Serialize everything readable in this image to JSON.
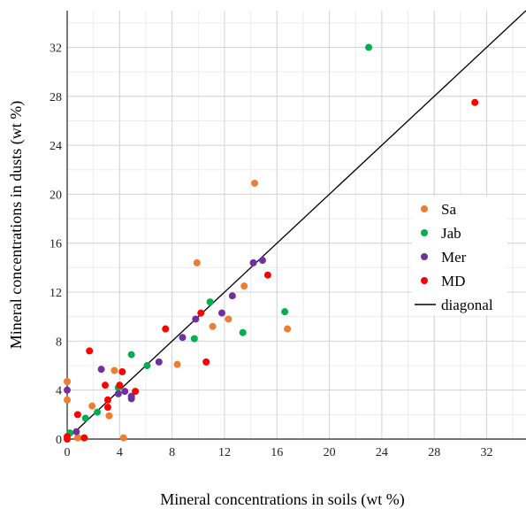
{
  "chart_data": {
    "type": "scatter",
    "title": "",
    "xlabel": "Mineral concentrations  in soils (wt %)",
    "ylabel": "Mineral concentrations  in dusts (wt %)",
    "xlim": [
      0,
      35
    ],
    "ylim": [
      0,
      35
    ],
    "xticks": [
      0,
      4,
      8,
      12,
      16,
      20,
      24,
      28,
      32
    ],
    "yticks": [
      0,
      4,
      8,
      12,
      16,
      20,
      24,
      28,
      32
    ],
    "xtick_labels": [
      "0",
      "4",
      "8",
      "12",
      "16",
      "20",
      "24",
      "28",
      "32"
    ],
    "ytick_labels": [
      "0",
      "4",
      "8",
      "12",
      "16",
      "20",
      "24",
      "28",
      "32"
    ],
    "grid": true,
    "minor_grid_step": 2,
    "legend_position": "right",
    "series": [
      {
        "name": "Sa",
        "color": "#ed7d31",
        "points": [
          [
            0.0,
            4.7
          ],
          [
            0.0,
            3.2
          ],
          [
            1.9,
            2.7
          ],
          [
            3.2,
            1.9
          ],
          [
            3.6,
            5.6
          ],
          [
            4.3,
            0.1
          ],
          [
            0.8,
            0.1
          ],
          [
            8.4,
            6.1
          ],
          [
            9.9,
            14.4
          ],
          [
            11.1,
            9.2
          ],
          [
            12.3,
            9.8
          ],
          [
            13.5,
            12.5
          ],
          [
            14.3,
            20.9
          ],
          [
            16.8,
            9.0
          ]
        ]
      },
      {
        "name": "Jab",
        "color": "#00b050",
        "points": [
          [
            0.2,
            0.5
          ],
          [
            1.4,
            1.7
          ],
          [
            2.3,
            2.2
          ],
          [
            3.9,
            4.2
          ],
          [
            4.9,
            6.9
          ],
          [
            6.1,
            6.0
          ],
          [
            9.7,
            8.2
          ],
          [
            10.9,
            11.2
          ],
          [
            13.4,
            8.7
          ],
          [
            16.6,
            10.4
          ],
          [
            23.0,
            32.0
          ]
        ]
      },
      {
        "name": "Mer",
        "color": "#7030a0",
        "points": [
          [
            0.0,
            4.0
          ],
          [
            0.7,
            0.6
          ],
          [
            2.6,
            5.7
          ],
          [
            3.9,
            3.7
          ],
          [
            4.4,
            3.9
          ],
          [
            4.9,
            3.3
          ],
          [
            4.9,
            3.5
          ],
          [
            7.0,
            6.3
          ],
          [
            8.8,
            8.3
          ],
          [
            9.8,
            9.8
          ],
          [
            11.8,
            10.3
          ],
          [
            12.6,
            11.7
          ],
          [
            14.2,
            14.4
          ],
          [
            14.9,
            14.6
          ]
        ]
      },
      {
        "name": "MD",
        "color": "#ff0000",
        "points": [
          [
            0.0,
            0.2
          ],
          [
            0.0,
            0.0
          ],
          [
            0.8,
            2.0
          ],
          [
            1.3,
            0.1
          ],
          [
            1.7,
            7.2
          ],
          [
            2.9,
            4.4
          ],
          [
            3.1,
            3.2
          ],
          [
            3.1,
            2.6
          ],
          [
            4.0,
            4.4
          ],
          [
            4.2,
            5.5
          ],
          [
            5.2,
            3.9
          ],
          [
            7.5,
            9.0
          ],
          [
            10.2,
            10.3
          ],
          [
            10.6,
            6.3
          ],
          [
            15.3,
            13.4
          ],
          [
            31.1,
            27.5
          ]
        ]
      }
    ],
    "diagonal": {
      "name": "diagonal",
      "color": "#000000",
      "from": [
        0,
        0
      ],
      "to": [
        35,
        35
      ]
    }
  }
}
